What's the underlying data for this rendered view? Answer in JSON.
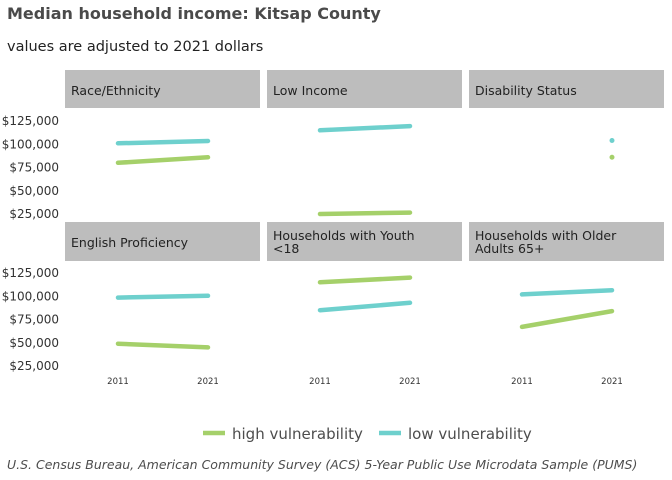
{
  "title": "Median household income: Kitsap County",
  "subtitle": "values are adjusted to 2021 dollars",
  "caption": "U.S. Census Bureau, American Community Survey (ACS) 5-Year Public Use Microdata Sample (PUMS)",
  "colors": {
    "high": "#a5d06a",
    "low": "#6ed0cd",
    "strip_bg": "#bdbdbd"
  },
  "chart_data": {
    "type": "line",
    "xlabel": "",
    "ylabel": "",
    "x_ticks": [
      "2011",
      "2021"
    ],
    "y_ticks": [
      "$25,000",
      "$50,000",
      "$75,000",
      "$100,000",
      "$125,000"
    ],
    "y_tick_values": [
      25000,
      50000,
      75000,
      100000,
      125000
    ],
    "ylim": [
      25000,
      125000
    ],
    "legend": {
      "position": "bottom",
      "items": [
        "high vulnerability",
        "low vulnerability"
      ]
    },
    "panels": [
      {
        "title": "Race/Ethnicity",
        "title_lines": [
          "Race/Ethnicity"
        ],
        "series": [
          {
            "name": "high vulnerability",
            "x": [
              2011,
              2021
            ],
            "y": [
              80000,
              86000
            ]
          },
          {
            "name": "low vulnerability",
            "x": [
              2011,
              2021
            ],
            "y": [
              101000,
              103500
            ]
          }
        ]
      },
      {
        "title": "Low Income",
        "title_lines": [
          "Low Income"
        ],
        "series": [
          {
            "name": "high vulnerability",
            "x": [
              2011,
              2021
            ],
            "y": [
              25000,
              26500
            ]
          },
          {
            "name": "low vulnerability",
            "x": [
              2011,
              2021
            ],
            "y": [
              115000,
              119500
            ]
          }
        ]
      },
      {
        "title": "Disability Status",
        "title_lines": [
          "Disability Status"
        ],
        "series": [
          {
            "name": "high vulnerability",
            "x": [
              2021
            ],
            "y": [
              86000
            ]
          },
          {
            "name": "low vulnerability",
            "x": [
              2021
            ],
            "y": [
              104000
            ]
          }
        ]
      },
      {
        "title": "English Proficiency",
        "title_lines": [
          "English Proficiency"
        ],
        "series": [
          {
            "name": "high vulnerability",
            "x": [
              2011,
              2021
            ],
            "y": [
              49000,
              45000
            ]
          },
          {
            "name": "low vulnerability",
            "x": [
              2011,
              2021
            ],
            "y": [
              98500,
              100500
            ]
          }
        ]
      },
      {
        "title": "Households with Youth <18",
        "title_lines": [
          "Households with Youth",
          "<18"
        ],
        "series": [
          {
            "name": "high vulnerability",
            "x": [
              2011,
              2021
            ],
            "y": [
              115000,
              120000
            ]
          },
          {
            "name": "low vulnerability",
            "x": [
              2011,
              2021
            ],
            "y": [
              85000,
              93000
            ]
          }
        ]
      },
      {
        "title": "Households with Older Adults 65+",
        "title_lines": [
          "Households with Older",
          "Adults 65+"
        ],
        "series": [
          {
            "name": "high vulnerability",
            "x": [
              2011,
              2021
            ],
            "y": [
              67000,
              84000
            ]
          },
          {
            "name": "low vulnerability",
            "x": [
              2011,
              2021
            ],
            "y": [
              102000,
              106500
            ]
          }
        ]
      }
    ]
  }
}
